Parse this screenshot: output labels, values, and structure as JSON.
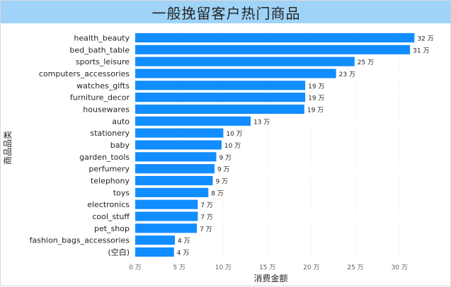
{
  "colors": {
    "bar": "#118dff",
    "title_background": "#9fd3f7"
  },
  "chart_data": {
    "type": "bar",
    "orientation": "horizontal",
    "title": "一般挽留客户热门商品",
    "xlabel": "消费金额",
    "ylabel": "商品品类",
    "unit": "万",
    "categories": [
      "health_beauty",
      "bed_bath_table",
      "sports_leisure",
      "computers_accessories",
      "watches_gifts",
      "furniture_decor",
      "housewares",
      "auto",
      "stationery",
      "baby",
      "garden_tools",
      "perfumery",
      "telephony",
      "toys",
      "electronics",
      "cool_stuff",
      "pet_shop",
      "fashion_bags_accessories",
      "(空白)"
    ],
    "values": [
      31.7,
      31.2,
      24.9,
      22.8,
      19.3,
      19.3,
      19.2,
      13.1,
      10.0,
      9.8,
      9.2,
      9.0,
      8.8,
      8.3,
      7.1,
      7.1,
      7.0,
      4.5,
      4.4
    ],
    "value_labels": [
      "32 万",
      "31 万",
      "25 万",
      "23 万",
      "19 万",
      "19 万",
      "19 万",
      "13 万",
      "10 万",
      "10 万",
      "9 万",
      "9 万",
      "9 万",
      "8 万",
      "7 万",
      "7 万",
      "7 万",
      "4 万",
      "4 万"
    ],
    "xlim": [
      0,
      34
    ],
    "xticks": [
      0,
      5,
      10,
      15,
      20,
      25,
      30
    ],
    "xtick_labels": [
      "0 万",
      "5 万",
      "10 万",
      "15 万",
      "20 万",
      "25 万",
      "30 万"
    ],
    "grid": true,
    "legend": false
  }
}
